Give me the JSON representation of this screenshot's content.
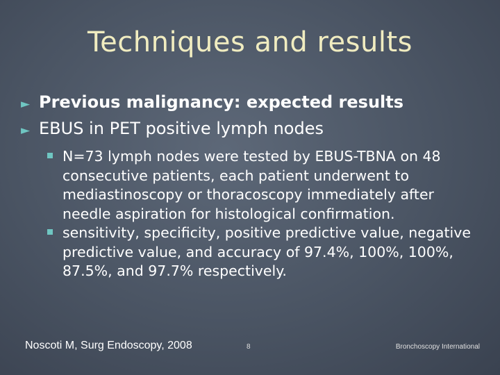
{
  "slide": {
    "title": "Techniques and results",
    "bullets": [
      {
        "marker": "►",
        "text": "Previous malignancy: expected results"
      },
      {
        "marker": "►",
        "text": "EBUS in PET positive lymph nodes"
      }
    ],
    "sub_bullets": [
      {
        "marker": "§",
        "text": "N=73 lymph nodes were tested by EBUS-TBNA on 48 consecutive patients, each patient underwent to mediastinoscopy or thoracoscopy immediately after needle aspiration for histological confirmation."
      },
      {
        "marker": "§",
        "text": "sensitivity, specificity, positive predictive value, negative predictive value, and accuracy of 97.4%, 100%, 100%, 87.5%, and 97.7% respectively."
      }
    ]
  },
  "footer": {
    "citation": "Noscoti M, Surg Endoscopy, 2008",
    "page_number": "8",
    "organization": "Bronchoscopy International"
  },
  "colors": {
    "title": "#f0ecc0",
    "bullet_marker": "#6fc6c2",
    "text": "#ffffff",
    "background": "#4a5463"
  }
}
